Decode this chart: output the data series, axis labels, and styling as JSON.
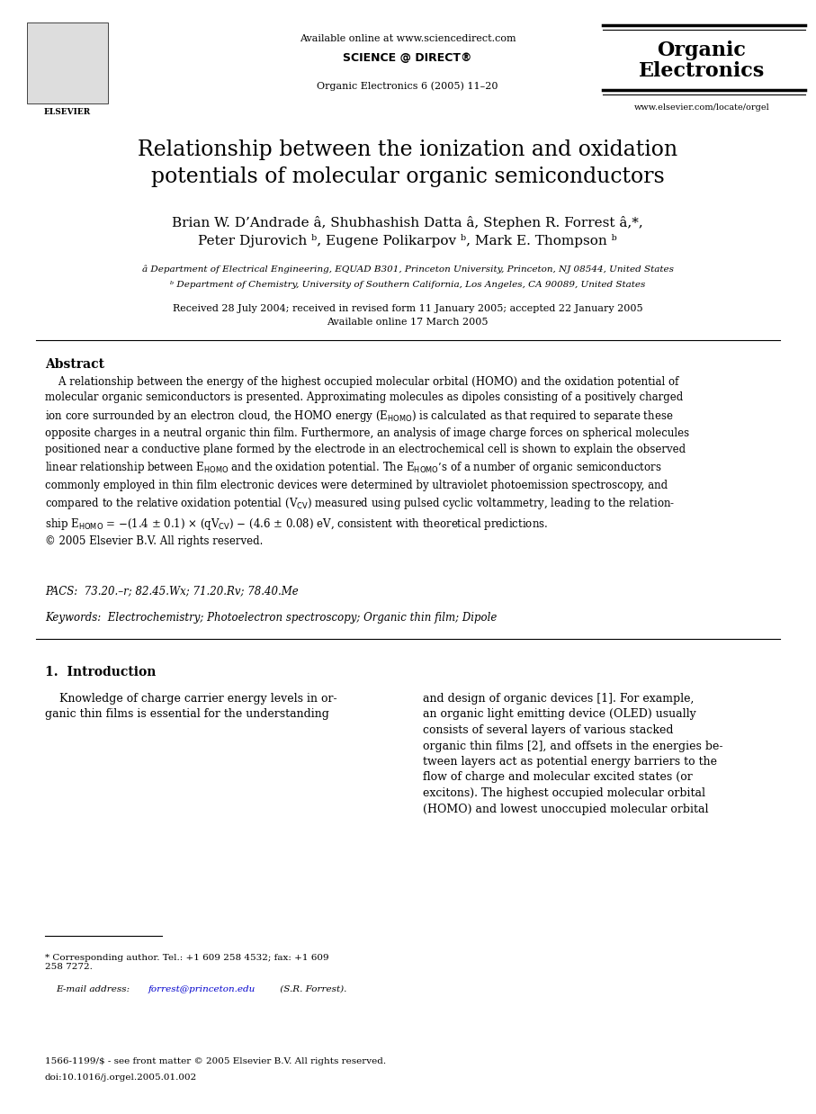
{
  "bg_color": "#ffffff",
  "title": "Relationship between the ionization and oxidation\npotentials of molecular organic semiconductors",
  "authors_line1": "Brian W. D’Andrade â, Shubhashish Datta â, Stephen R. Forrest â,*,",
  "authors_line2": "Peter Djurovich ᵇ, Eugene Polikarpov ᵇ, Mark E. Thompson ᵇ",
  "affil_a": "â Department of Electrical Engineering, EQUAD B301, Princeton University, Princeton, NJ 08544, United States",
  "affil_b": "ᵇ Department of Chemistry, University of Southern California, Los Angeles, CA 90089, United States",
  "received": "Received 28 July 2004; received in revised form 11 January 2005; accepted 22 January 2005",
  "available": "Available online 17 March 2005",
  "header_center": "Available online at www.sciencedirect.com",
  "header_journal_name": "Organic\nElectronics",
  "header_journal_ref": "Organic Electronics 6 (2005) 11–20",
  "header_url": "www.elsevier.com/locate/orgel",
  "abstract_title": "Abstract",
  "abstract_text": "A relationship between the energy of the highest occupied molecular orbital (HOMO) and the oxidation potential of molecular organic semiconductors is presented. Approximating molecules as dipoles consisting of a positively charged ion core surrounded by an electron cloud, the HOMO energy (Eᴴᴒᴹᴒ) is calculated as that required to separate these opposite charges in a neutral organic thin film. Furthermore, an analysis of image charge forces on spherical molecules positioned near a conductive plane formed by the electrode in an electrochemical cell is shown to explain the observed linear relationship between Eᴴᴒᴹᴒ and the oxidation potential. The Eᴴᴒᴹᴒ’s of a number of organic semiconductors commonly employed in thin film electronic devices were determined by ultraviolet photoemission spectroscopy, and compared to the relative oxidation potential (Vᴶᵤ) measured using pulsed cyclic voltammetry, leading to the relationship Eᴴᴒᴹᴒ = −(1.4 ± 0.1) × (qVᴶᵤ) − (4.6 ± 0.08) eV, consistent with theoretical predictions.\n© 2005 Elsevier B.V. All rights reserved.",
  "pacs": "PACS:  73.20.–r; 82.45.Wx; 71.20.Rv; 78.40.Me",
  "keywords": "Keywords:  Electrochemistry; Photoelectron spectroscopy; Organic thin film; Dipole",
  "section1_title": "1.  Introduction",
  "section1_col1": "Knowledge of charge carrier energy levels in organic thin films is essential for the understanding",
  "section1_col2": "and design of organic devices [1]. For example, an organic light emitting device (OLED) usually consists of several layers of various stacked organic thin films [2], and offsets in the energies between layers act as potential energy barriers to the flow of charge and molecular excited states (or excitons). The highest occupied molecular orbital (HOMO) and lowest unoccupied molecular orbital",
  "footnote_star": "* Corresponding author. Tel.: +1 609 258 4532; fax: +1 609\n258 7272.",
  "footnote_email": "E-mail address: forrest@princeton.edu (S.R. Forrest).",
  "footer_issn": "1566-1199/$ - see front matter © 2005 Elsevier B.V. All rights reserved.",
  "footer_doi": "doi:10.1016/j.orgel.2005.01.002"
}
